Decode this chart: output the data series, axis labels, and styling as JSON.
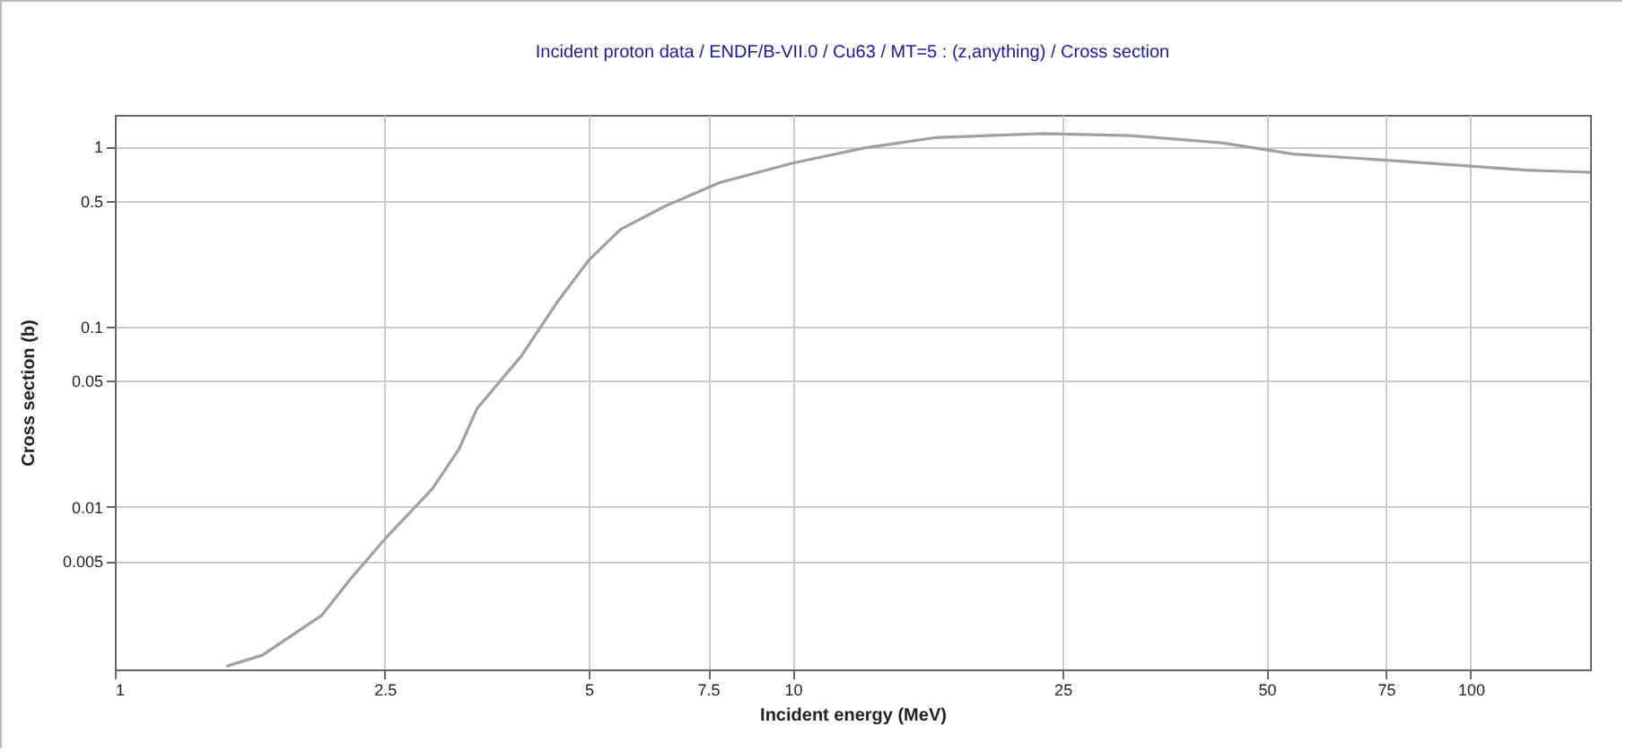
{
  "chart_data": {
    "type": "line",
    "title": "Incident proton data / ENDF/B-VII.0 / Cu63 / MT=5 : (z,anything) / Cross section",
    "xlabel": "Incident energy (MeV)",
    "ylabel": "Cross section (b)",
    "log": "xy",
    "grid": true,
    "xlim": [
      1,
      150
    ],
    "xticks": [
      1,
      2.5,
      5,
      7.5,
      10,
      25,
      50,
      75,
      100
    ],
    "ylim": [
      0.00125,
      1.5
    ],
    "yticks": [
      0.005,
      0.01,
      0.05,
      0.1,
      0.5,
      1
    ],
    "x": [
      1.46,
      1.65,
      2.02,
      2.23,
      2.5,
      2.94,
      3.22,
      3.42,
      3.98,
      4.5,
      5,
      5.57,
      6.49,
      7.8,
      10,
      12.7,
      16.2,
      23.3,
      31.6,
      42.9,
      54.7,
      78.9,
      121,
      150
    ],
    "series": [
      {
        "color": "#a0a0a0",
        "values": [
          0.0013,
          0.0015,
          0.0025,
          0.004,
          0.0066,
          0.0126,
          0.021,
          0.035,
          0.069,
          0.138,
          0.234,
          0.347,
          0.468,
          0.631,
          0.81,
          0.98,
          1.12,
          1.18,
          1.15,
          1.05,
          0.91,
          0.83,
          0.74,
          0.72
        ]
      }
    ]
  }
}
